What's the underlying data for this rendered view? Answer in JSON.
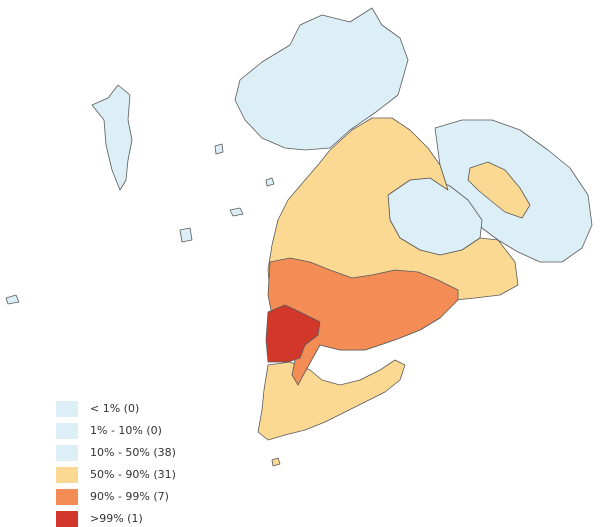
{
  "colors": {
    "bin0": "#dceef6",
    "bin1": "#dceef6",
    "bin2": "#dceef6",
    "bin3": "#fbd992",
    "bin4": "#f38d55",
    "bin5": "#d1372b",
    "border": "#5a5a5a"
  },
  "legend": [
    {
      "label": "< 1% (0)"
    },
    {
      "label": "1% - 10% (0)"
    },
    {
      "label": "10% - 50% (38)"
    },
    {
      "label": "50% - 90% (31)"
    },
    {
      "label": "90% - 99% (7)"
    },
    {
      "label": ">99% (1)"
    }
  ]
}
